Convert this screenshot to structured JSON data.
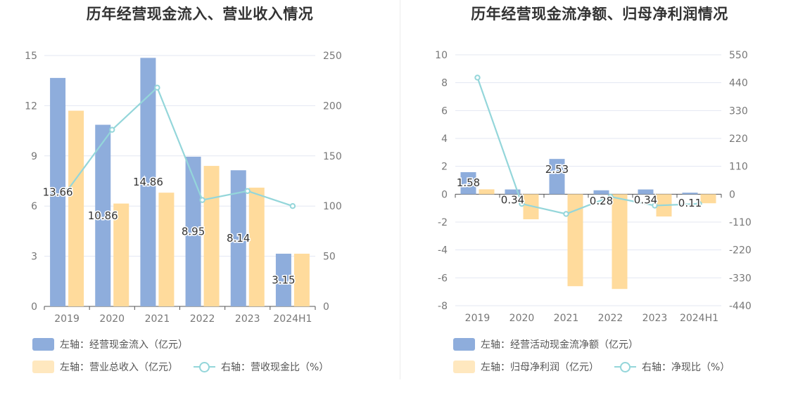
{
  "charts": {
    "left": {
      "title": "历年经营现金流入、营业收入情况",
      "legend": [
        {
          "label": "左轴：经营现金流入（亿元）",
          "kind": "bar",
          "color": "#8eaddc"
        },
        {
          "label": "左轴：营业总收入（亿元）",
          "kind": "bar",
          "color": "#ffe8bf"
        },
        {
          "label": "右轴：营收现金比（%）",
          "kind": "line",
          "color": "#94d6da"
        }
      ]
    },
    "right": {
      "title": "历年经营现金流净额、归母净利润情况",
      "legend": [
        {
          "label": "左轴：经营活动现金流净额（亿元）",
          "kind": "bar",
          "color": "#8eaddc"
        },
        {
          "label": "左轴：归母净利润（亿元）",
          "kind": "bar",
          "color": "#ffe8bf"
        },
        {
          "label": "右轴：净现比（%）",
          "kind": "line",
          "color": "#94d6da"
        }
      ]
    }
  },
  "chart_data": [
    {
      "type": "bar",
      "title": "历年经营现金流入、营业收入情况",
      "categories": [
        "2019",
        "2020",
        "2021",
        "2022",
        "2023",
        "2024H1"
      ],
      "ylim_left": [
        0,
        15
      ],
      "yticks_left": [
        "15",
        "12",
        "9",
        "6",
        "3",
        "0"
      ],
      "ylim_right": [
        0,
        250
      ],
      "yticks_right": [
        "250",
        "200",
        "150",
        "100",
        "50",
        "0"
      ],
      "series": [
        {
          "name": "左轴：经营现金流入（亿元）",
          "axis": "left",
          "kind": "bar",
          "color": "#8eaddc",
          "values": [
            13.66,
            10.86,
            14.86,
            8.95,
            8.14,
            3.15
          ],
          "labels": [
            "13.66",
            "10.86",
            "14.86",
            "8.95",
            "8.14",
            "3.15"
          ]
        },
        {
          "name": "左轴：营业总收入（亿元）",
          "axis": "left",
          "kind": "bar",
          "color": "#ffdb9c",
          "values": [
            11.7,
            6.15,
            6.8,
            8.4,
            7.1,
            3.15
          ]
        },
        {
          "name": "右轴：营收现金比（%）",
          "axis": "right",
          "kind": "line",
          "color": "#94d6da",
          "values": [
            115,
            176,
            218,
            106,
            115,
            100
          ]
        }
      ],
      "grid": true
    },
    {
      "type": "bar",
      "title": "历年经营现金流净额、归母净利润情况",
      "categories": [
        "2019",
        "2020",
        "2021",
        "2022",
        "2023",
        "2024H1"
      ],
      "ylim_left": [
        -8,
        10
      ],
      "yticks_left": [
        "10",
        "8",
        "6",
        "4",
        "2",
        "0",
        "-2",
        "-4",
        "-6",
        "-8"
      ],
      "ylim_right": [
        -440,
        550
      ],
      "yticks_right": [
        "550",
        "440",
        "330",
        "220",
        "110",
        "0",
        "-110",
        "-220",
        "-330",
        "-440"
      ],
      "series": [
        {
          "name": "左轴：经营活动现金流净额（亿元）",
          "axis": "left",
          "kind": "bar",
          "color": "#8eaddc",
          "values": [
            1.58,
            0.34,
            2.53,
            0.28,
            0.34,
            0.11
          ],
          "labels": [
            "1.58",
            "0.34",
            "2.53",
            "0.28",
            "0.34",
            "0.11"
          ]
        },
        {
          "name": "左轴：归母净利润（亿元）",
          "axis": "left",
          "kind": "bar",
          "color": "#ffdb9c",
          "values": [
            0.35,
            -1.8,
            -6.6,
            -6.8,
            -1.6,
            -0.65
          ]
        },
        {
          "name": "右轴：净现比（%）",
          "axis": "right",
          "kind": "line",
          "color": "#94d6da",
          "values": [
            460,
            -38,
            -78,
            -10,
            -45,
            -38
          ]
        }
      ],
      "grid": true
    }
  ]
}
